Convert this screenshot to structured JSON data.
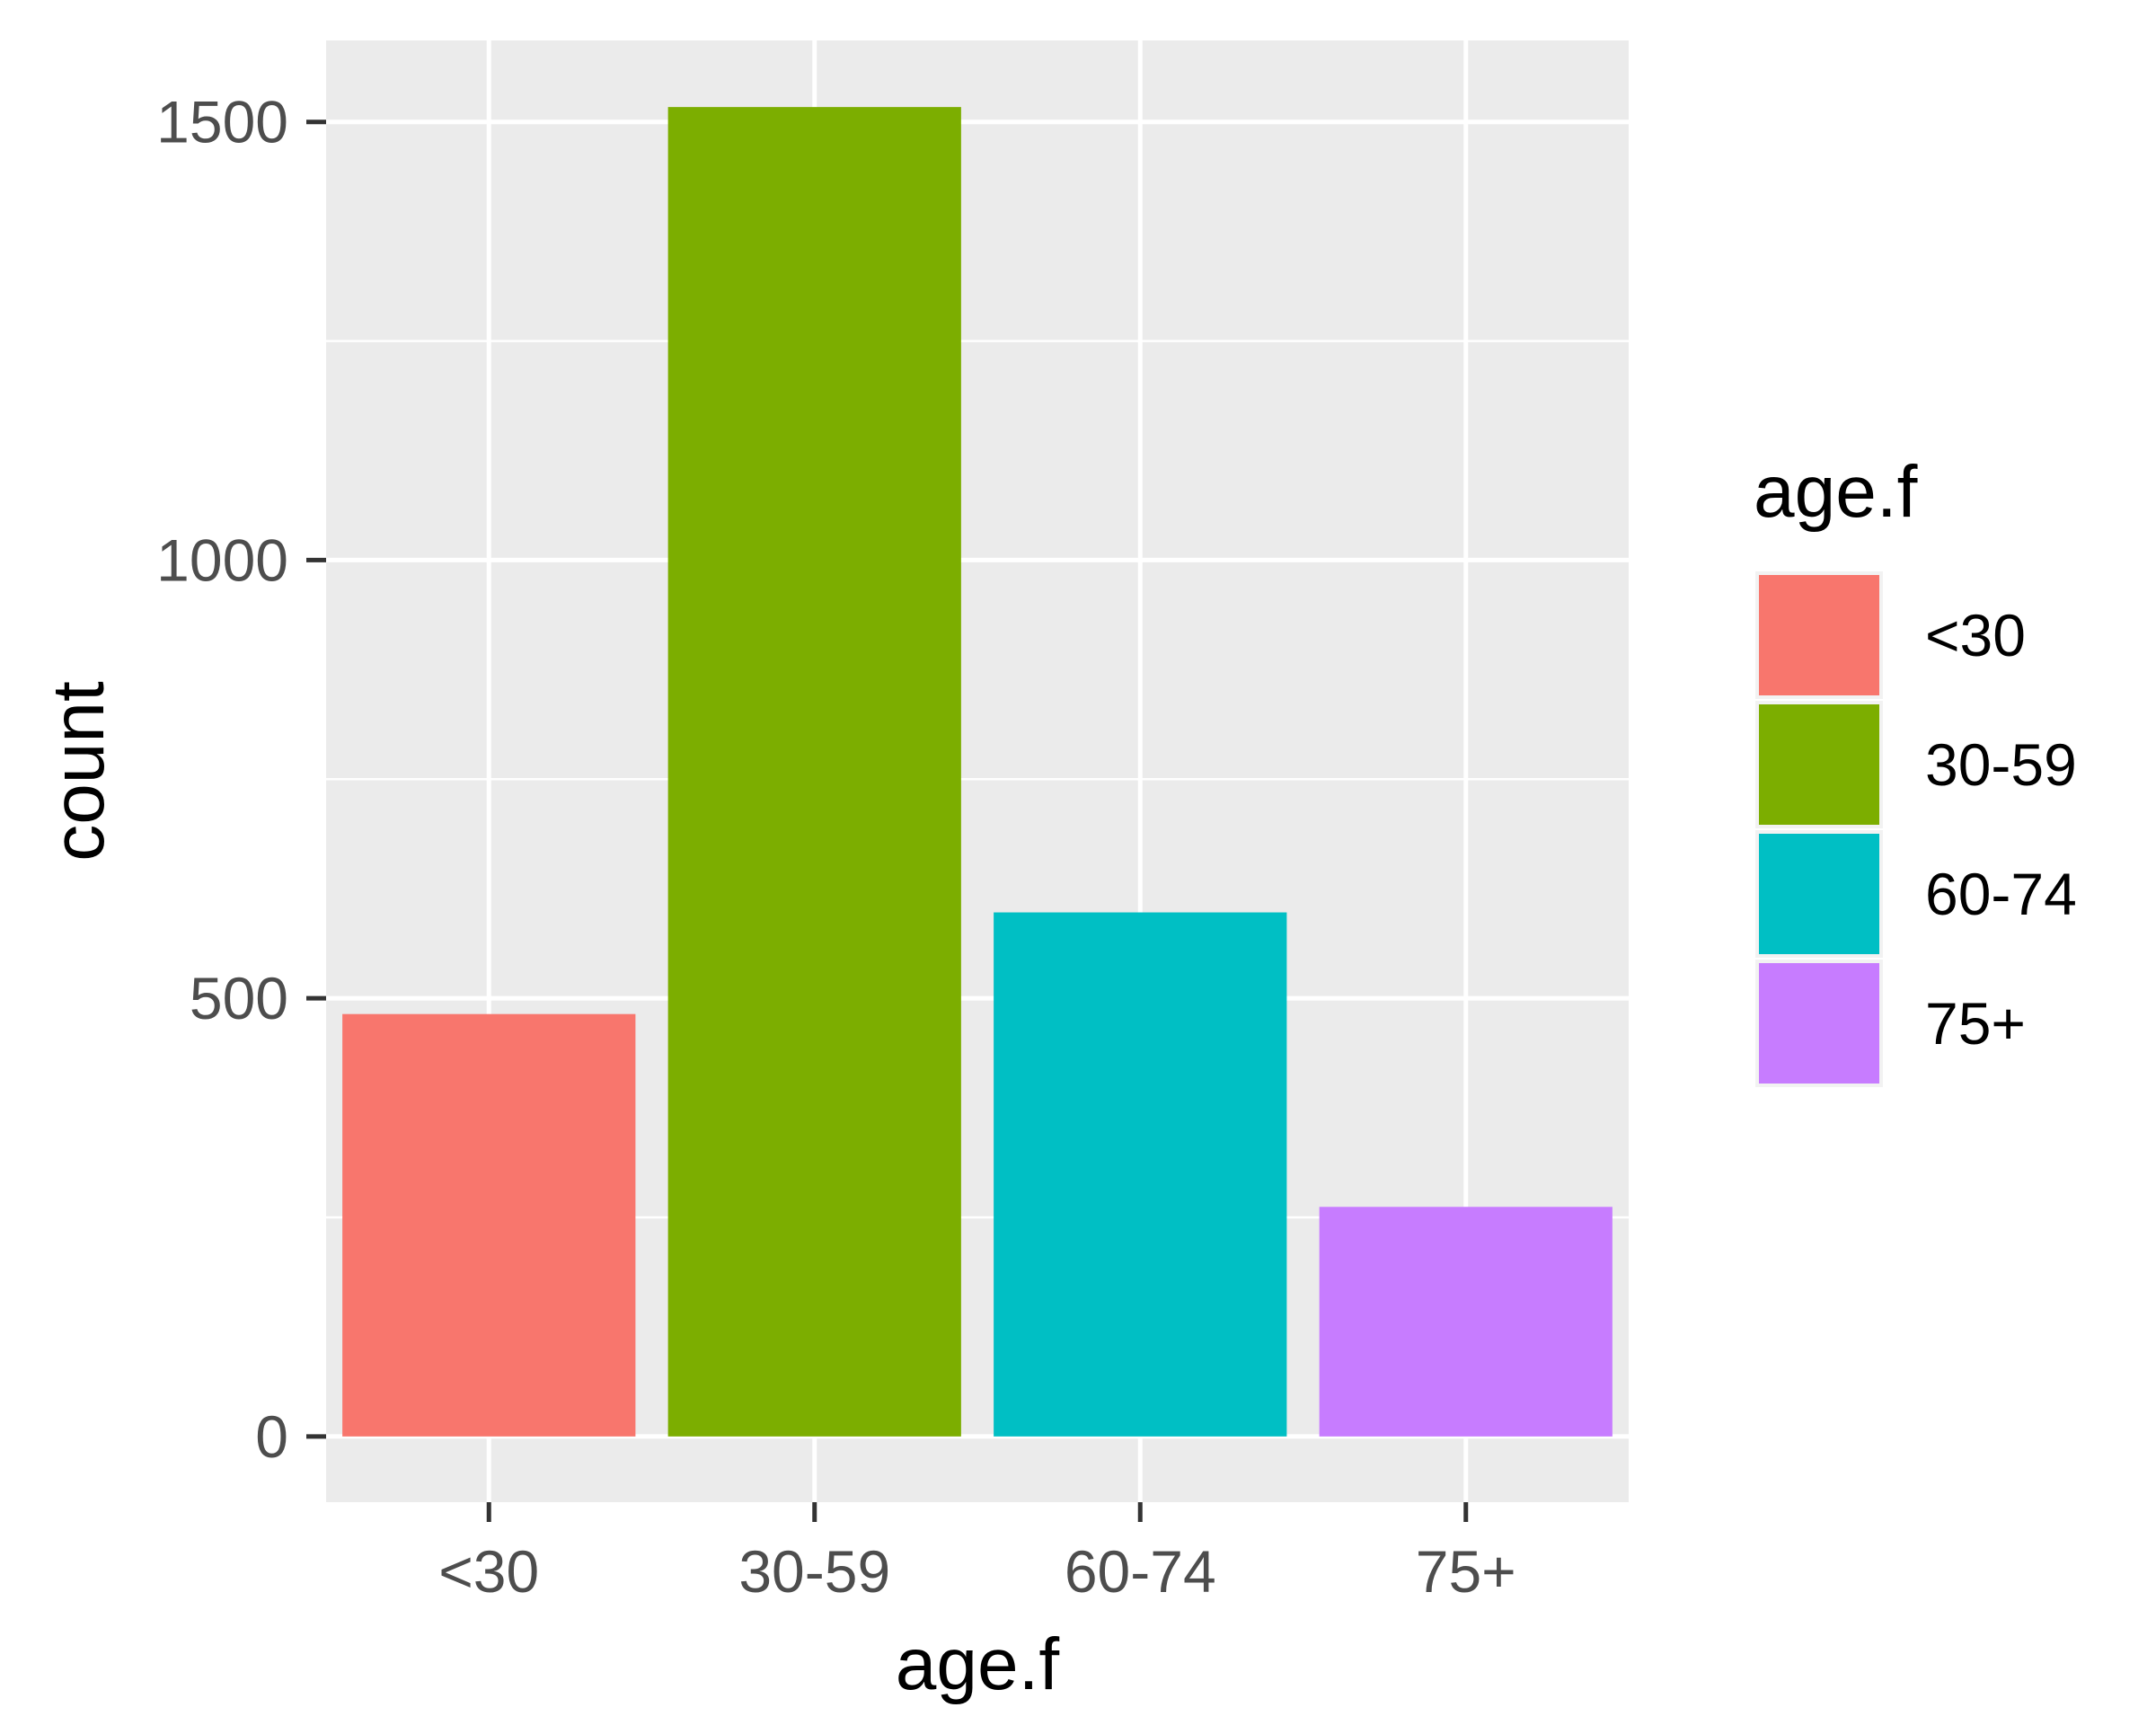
{
  "chart_data": {
    "type": "bar",
    "categories": [
      "<30",
      "30-59",
      "60-74",
      "75+"
    ],
    "values": [
      482,
      1517,
      598,
      262
    ],
    "colors": [
      "#F8766D",
      "#7CAE00",
      "#00BFC4",
      "#C77CFF"
    ],
    "xlabel": "age.f",
    "ylabel": "count",
    "ylim": [
      -75,
      1593
    ],
    "yticks": [
      0,
      500,
      1000,
      1500
    ],
    "grid": true,
    "legend": {
      "title": "age.f",
      "placement": "right",
      "entries": [
        "<30",
        "30-59",
        "60-74",
        "75+"
      ]
    }
  }
}
